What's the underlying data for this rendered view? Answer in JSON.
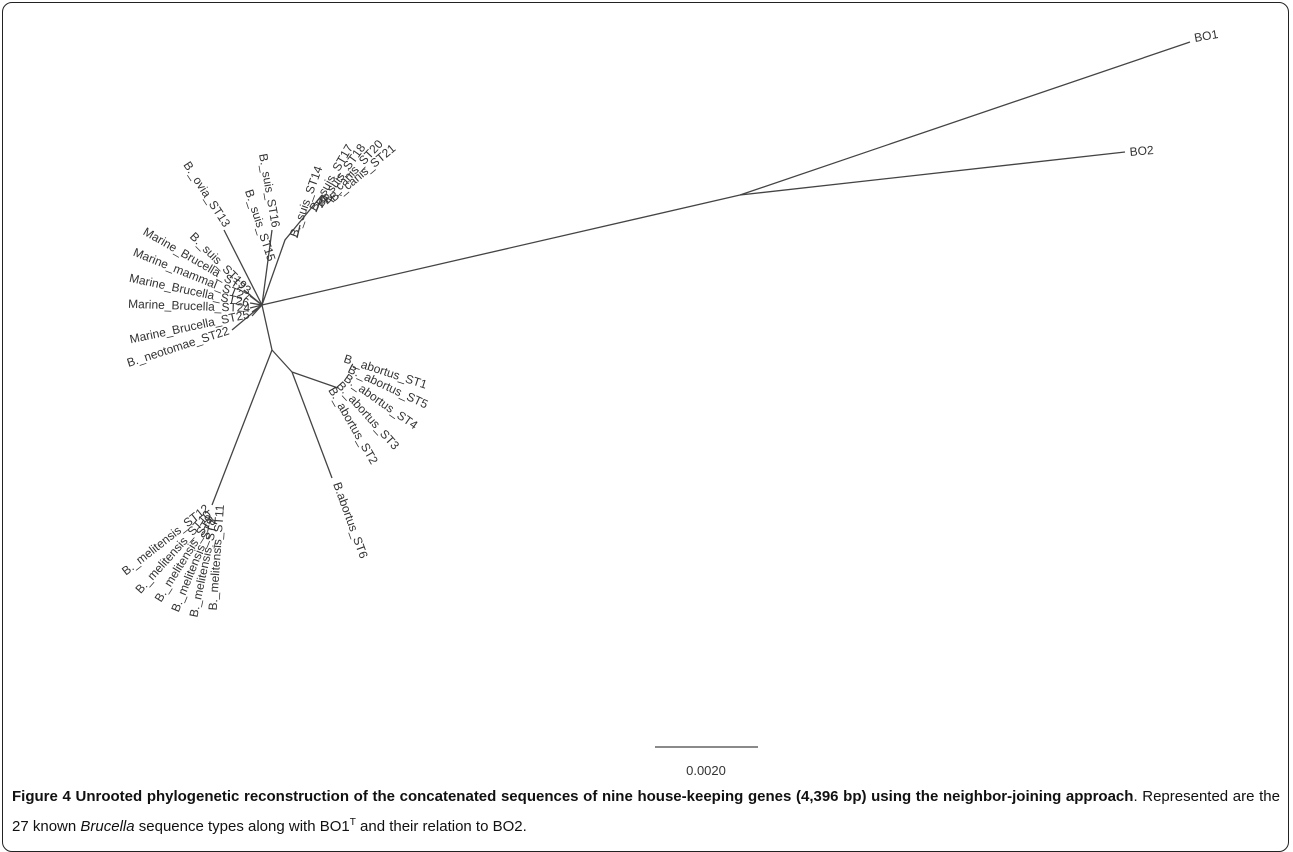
{
  "figure": {
    "labels": [
      "BO1",
      "BO2",
      "B._suis_ST14",
      "B._suis_ST17",
      "B._suis_ST18",
      "B._canis_ST20",
      "B._canis_ST21",
      "B._suis_ST16",
      "B._suis_ST15",
      "B._ovia_ST13",
      "B._suis_ST19",
      "Marine_Brucella_ST23",
      "Marine_mammal_ST27",
      "Marine_Brucella_ST26",
      "Marine_Brucella_ST24",
      "Marine_Brucella_ST25",
      "B._neotomae_ST22",
      "B._abortus_ST1",
      "B._abortus_ST5",
      "B._abortus_ST4",
      "B._abortus_ST3",
      "B._abortus_ST2",
      "B.abortus_ST6",
      "B._melitensis_ST12",
      "B._melitensis_ST10",
      "B._melitensis_ST9",
      "B._melitensis_ST8",
      "B._melitensis_ST7",
      "B._melitensis_ST11"
    ],
    "scale_label": "0.0020"
  },
  "caption": {
    "label": "Figure 4",
    "title": "Unrooted phylogenetic reconstruction of the concatenated sequences of nine house-keeping genes (4,396 bp) using the neighbor-joining approach",
    "text_1": ". Represented are the 27 known ",
    "italic": "Brucella",
    "text_2": " sequence types along with BO1",
    "sup": "T",
    "text_3": " and their relation to BO2."
  }
}
